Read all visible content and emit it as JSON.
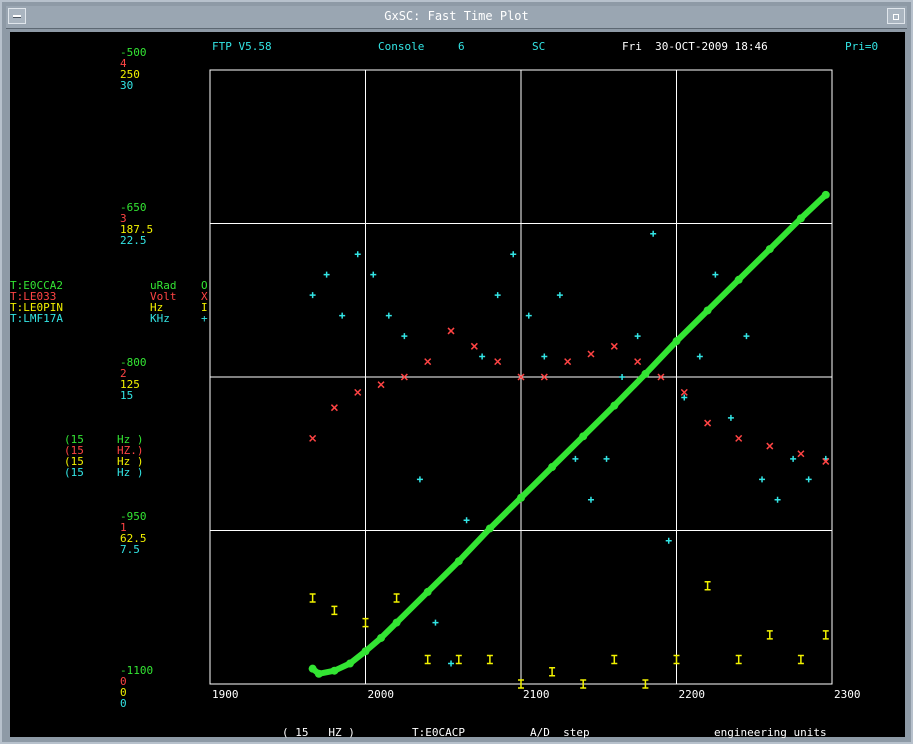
{
  "window": {
    "title": "GxSC: Fast Time Plot",
    "icons": {
      "menu": "window-menu-icon",
      "maximize": "maximize-icon"
    }
  },
  "header": {
    "version": "FTP V5.58",
    "console_label": "Console",
    "console_number": "6",
    "sc_label": "SC",
    "datetime": "Fri  30-OCT-2009 18:46",
    "priority": "Pri=0"
  },
  "y_axis_labels": [
    {
      "group": "top",
      "values": [
        "-500",
        "4",
        "250",
        "30"
      ]
    },
    {
      "group": "2",
      "values": [
        "-650",
        "3",
        "187.5",
        "22.5"
      ]
    },
    {
      "group": "3",
      "values": [
        "-800",
        "2",
        "125",
        "15"
      ]
    },
    {
      "group": "4",
      "values": [
        "-950",
        "1",
        "62.5",
        "7.5"
      ]
    },
    {
      "group": "bottom",
      "values": [
        "-1100",
        "0",
        "0",
        "0"
      ]
    }
  ],
  "legend": [
    {
      "device": "T:E0CCA2",
      "units": "uRad",
      "symbol": "O",
      "rate": "(15     Hz )",
      "color": "#33e533"
    },
    {
      "device": "T:LE033",
      "units": "Volt",
      "symbol": "X",
      "rate": "(15     HZ.)",
      "color": "#ff4444"
    },
    {
      "device": "T:LE0PIN",
      "units": "Hz",
      "symbol": "I",
      "rate": "(15     Hz )",
      "color": "#f2f200"
    },
    {
      "device": "T:LMF17A",
      "units": "KHz",
      "symbol": "+",
      "rate": "(15     Hz )",
      "color": "#33e5e5"
    }
  ],
  "footer": {
    "rate": "( 15   HZ )",
    "device": "T:E0CACP",
    "mode": "A/D  step",
    "units": "engineering units"
  },
  "chart_data": {
    "type": "scatter",
    "title": "",
    "x_tick_labels": [
      "1900",
      "2000",
      "2100",
      "2200",
      "2300"
    ],
    "xlim": [
      1900,
      2300
    ],
    "grid": true,
    "series": [
      {
        "name": "T:E0CCA2",
        "color": "#33e533",
        "axis": "-1100 to -500",
        "x": [
          1966,
          1970,
          1980,
          1990,
          2000,
          2010,
          2020,
          2040,
          2060,
          2080,
          2100,
          2120,
          2140,
          2160,
          2180,
          2200,
          2220,
          2240,
          2260,
          2280,
          2296
        ],
        "y": [
          -1085,
          -1090,
          -1087,
          -1080,
          -1068,
          -1055,
          -1040,
          -1010,
          -980,
          -948,
          -918,
          -888,
          -858,
          -828,
          -797,
          -765,
          -735,
          -705,
          -675,
          -645,
          -622
        ]
      },
      {
        "name": "T:LE033",
        "color": "#ff4444",
        "axis": "0 to 4",
        "x": [
          1966,
          1980,
          1995,
          2010,
          2025,
          2040,
          2055,
          2070,
          2085,
          2100,
          2115,
          2130,
          2145,
          2160,
          2175,
          2190,
          2205,
          2220,
          2240,
          2260,
          2280,
          2296
        ],
        "y": [
          1.6,
          1.8,
          1.9,
          1.95,
          2.0,
          2.1,
          2.3,
          2.2,
          2.1,
          2.0,
          2.0,
          2.1,
          2.15,
          2.2,
          2.1,
          2.0,
          1.9,
          1.7,
          1.6,
          1.55,
          1.5,
          1.45
        ]
      },
      {
        "name": "T:LE0PIN",
        "color": "#f2f200",
        "axis": "0 to 250",
        "x": [
          1966,
          1980,
          2000,
          2020,
          2040,
          2060,
          2080,
          2100,
          2120,
          2140,
          2160,
          2180,
          2200,
          2220,
          2240,
          2260,
          2280,
          2296
        ],
        "y": [
          35,
          30,
          25,
          35,
          10,
          10,
          10,
          0,
          5,
          0,
          10,
          0,
          10,
          40,
          10,
          20,
          10,
          20
        ]
      },
      {
        "name": "T:LMF17A",
        "color": "#33e5e5",
        "axis": "0 to 30",
        "x": [
          1966,
          1975,
          1985,
          1995,
          2005,
          2015,
          2025,
          2035,
          2045,
          2055,
          2065,
          2075,
          2085,
          2095,
          2105,
          2115,
          2125,
          2135,
          2145,
          2155,
          2165,
          2175,
          2185,
          2195,
          2205,
          2215,
          2225,
          2235,
          2245,
          2255,
          2265,
          2275,
          2285,
          2296
        ],
        "y": [
          19,
          20,
          18,
          21,
          20,
          18,
          17,
          10,
          3,
          1,
          8,
          16,
          19,
          21,
          18,
          16,
          19,
          11,
          9,
          11,
          15,
          17,
          22,
          7,
          14,
          16,
          20,
          13,
          17,
          10,
          9,
          11,
          10,
          11
        ]
      }
    ]
  }
}
